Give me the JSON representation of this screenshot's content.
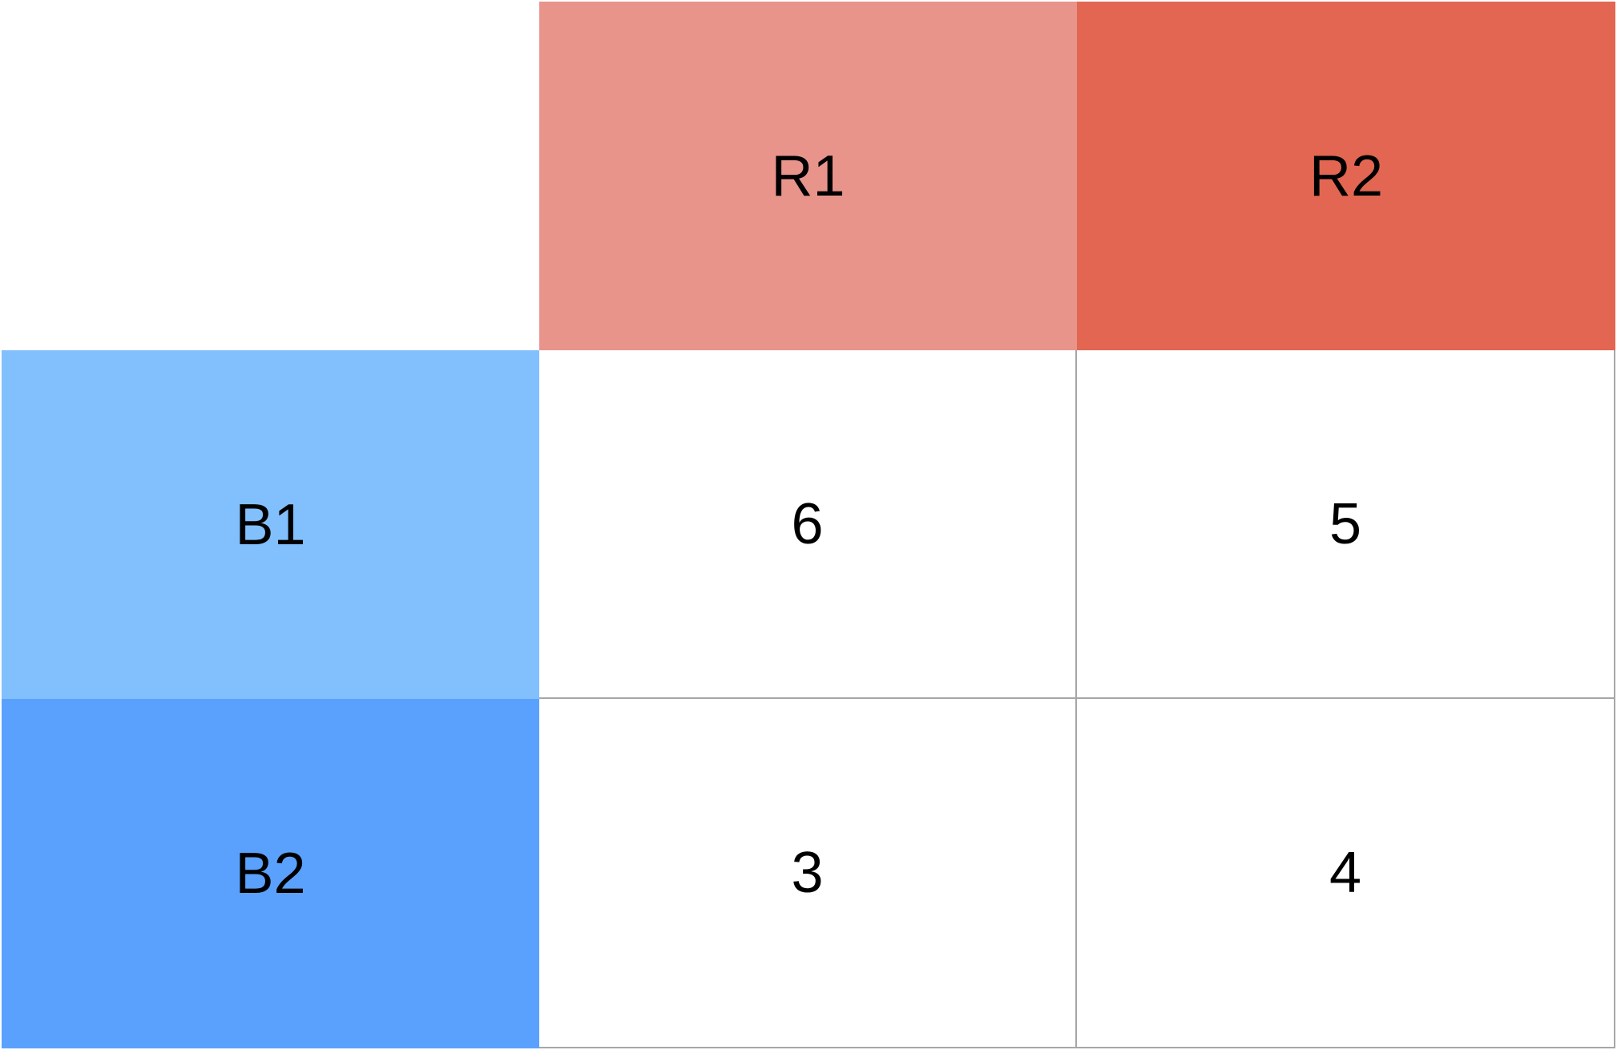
{
  "matrix": {
    "column_headers": [
      {
        "label": "R1",
        "color": "#e8948b"
      },
      {
        "label": "R2",
        "color": "#e26652"
      }
    ],
    "row_headers": [
      {
        "label": "B1",
        "color": "#82c0fd"
      },
      {
        "label": "B2",
        "color": "#5aa1fe"
      }
    ],
    "rows": [
      [
        "6",
        "5"
      ],
      [
        "3",
        "4"
      ]
    ]
  }
}
